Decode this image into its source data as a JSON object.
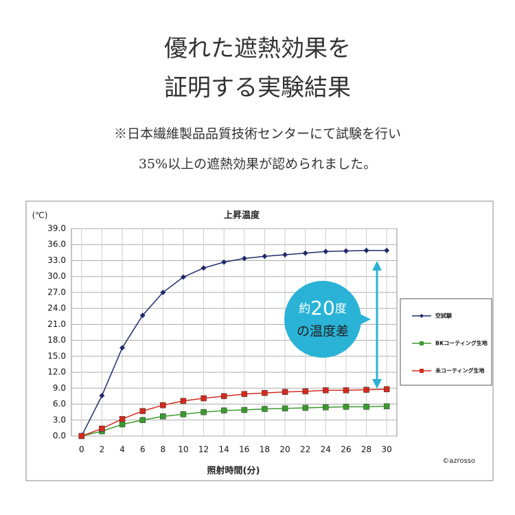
{
  "header": {
    "title": [
      "優れた遮熱効果を",
      "証明する実験結果"
    ],
    "subtitle": [
      "※日本繊維製品品質技術センターにて試験を行い",
      "35%以上の遮熱効果が認められました。"
    ]
  },
  "chart_data": {
    "type": "line",
    "title": "上昇温度",
    "y_unit": "(℃)",
    "x_label": "照射時間(分)",
    "x": [
      0,
      2,
      4,
      6,
      8,
      10,
      12,
      14,
      16,
      18,
      20,
      22,
      24,
      26,
      28,
      30
    ],
    "series": [
      {
        "name": "空試験",
        "color": "#1f2a6b",
        "marker": "diamond",
        "values": [
          0,
          7.6,
          16.6,
          22.7,
          27.0,
          29.9,
          31.6,
          32.7,
          33.4,
          33.8,
          34.1,
          34.4,
          34.7,
          34.8,
          34.9,
          34.9
        ]
      },
      {
        "name": "BKコーティング生地",
        "color": "#3a9a2e",
        "marker": "square",
        "values": [
          0,
          0.9,
          2.2,
          3.0,
          3.7,
          4.1,
          4.5,
          4.8,
          4.9,
          5.1,
          5.2,
          5.3,
          5.4,
          5.5,
          5.5,
          5.6
        ]
      },
      {
        "name": "未コーティング生地",
        "color": "#d42a1e",
        "marker": "square",
        "values": [
          0,
          1.4,
          3.2,
          4.7,
          5.8,
          6.6,
          7.1,
          7.5,
          7.9,
          8.1,
          8.3,
          8.4,
          8.6,
          8.6,
          8.7,
          8.8
        ]
      }
    ],
    "xlim": [
      -1,
      31
    ],
    "xticks": [
      0,
      2,
      4,
      6,
      8,
      10,
      12,
      14,
      16,
      18,
      20,
      22,
      24,
      26,
      28,
      30
    ],
    "ylim": [
      0,
      39
    ],
    "yticks": [
      {
        "value": 0,
        "label": "0.0"
      },
      {
        "value": 3,
        "label": "3.0"
      },
      {
        "value": 6,
        "label": "6.0"
      },
      {
        "value": 9,
        "label": "9.0"
      },
      {
        "value": 12,
        "label": "12.0"
      },
      {
        "value": 15,
        "label": "15.0"
      },
      {
        "value": 18,
        "label": "18.0"
      },
      {
        "value": 21,
        "label": "21.0"
      },
      {
        "value": 24,
        "label": "24.0"
      },
      {
        "value": 27,
        "label": "27.0"
      },
      {
        "value": 30,
        "label": "30.0"
      },
      {
        "value": 33,
        "label": "33.0"
      },
      {
        "value": 36,
        "label": "36.0"
      },
      {
        "value": 39,
        "label": "39.0"
      }
    ],
    "grid": true,
    "legend": "right",
    "annotation": [
      "約",
      "20",
      "度",
      "の温度差"
    ],
    "credit": "©azrosso"
  }
}
